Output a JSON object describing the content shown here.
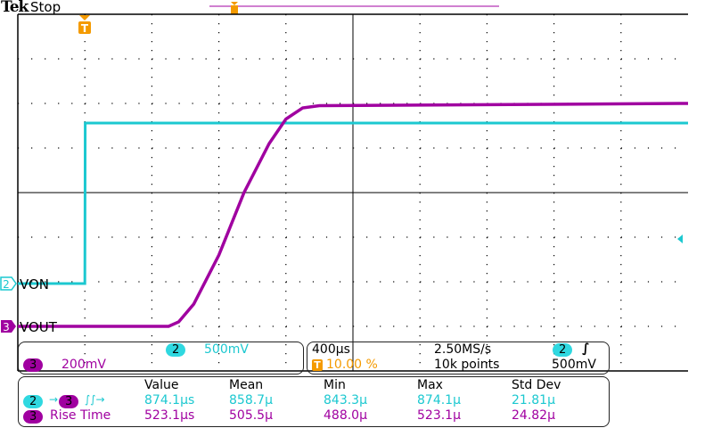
{
  "header": {
    "brand": "Tek",
    "status": "Stop"
  },
  "channels": {
    "ch2": {
      "number": "2",
      "label": "VON",
      "scale": "500mV",
      "color": "#1cc8d0"
    },
    "ch3": {
      "number": "3",
      "label": "VOUT",
      "scale": "200mV",
      "color": "#a000a0"
    }
  },
  "timebase": {
    "horizontal_scale": "400µs",
    "sample_rate": "2.50MS/s",
    "trigger_position": "10.00 %",
    "record_length": "10k points",
    "trigger_source": "2",
    "trigger_level": "500mV",
    "trigger_slope": "rising"
  },
  "measurements": {
    "headers": [
      "Value",
      "Mean",
      "Min",
      "Max",
      "Std Dev"
    ],
    "rows": [
      {
        "source": "2",
        "target": "3",
        "name": "",
        "icon": "delay-rising-rising",
        "color": "#1cc8d0",
        "values": [
          "874.1µs",
          "858.7µ",
          "843.3µ",
          "874.1µ",
          "21.81µ"
        ]
      },
      {
        "source": "3",
        "name": "Rise Time",
        "color": "#a000a0",
        "values": [
          "523.1µs",
          "505.5µ",
          "488.0µ",
          "523.1µ",
          "24.82µ"
        ]
      }
    ]
  },
  "chart_data": {
    "type": "line",
    "xlabel": "",
    "ylabel": "",
    "x_units": "µs",
    "x_range": [
      -400,
      3600
    ],
    "grid": true,
    "series": [
      {
        "name": "VON",
        "channel": "2",
        "units": "V",
        "points": [
          [
            -400,
            0
          ],
          [
            0,
            0
          ],
          [
            2,
            1.8
          ],
          [
            3600,
            1.8
          ]
        ]
      },
      {
        "name": "VOUT",
        "channel": "3",
        "units": "V",
        "points": [
          [
            -400,
            0
          ],
          [
            500,
            0
          ],
          [
            560,
            0.02
          ],
          [
            650,
            0.1
          ],
          [
            800,
            0.32
          ],
          [
            950,
            0.6
          ],
          [
            1100,
            0.82
          ],
          [
            1200,
            0.93
          ],
          [
            1300,
            0.98
          ],
          [
            1400,
            0.99
          ],
          [
            3600,
            1.0
          ]
        ]
      }
    ]
  }
}
